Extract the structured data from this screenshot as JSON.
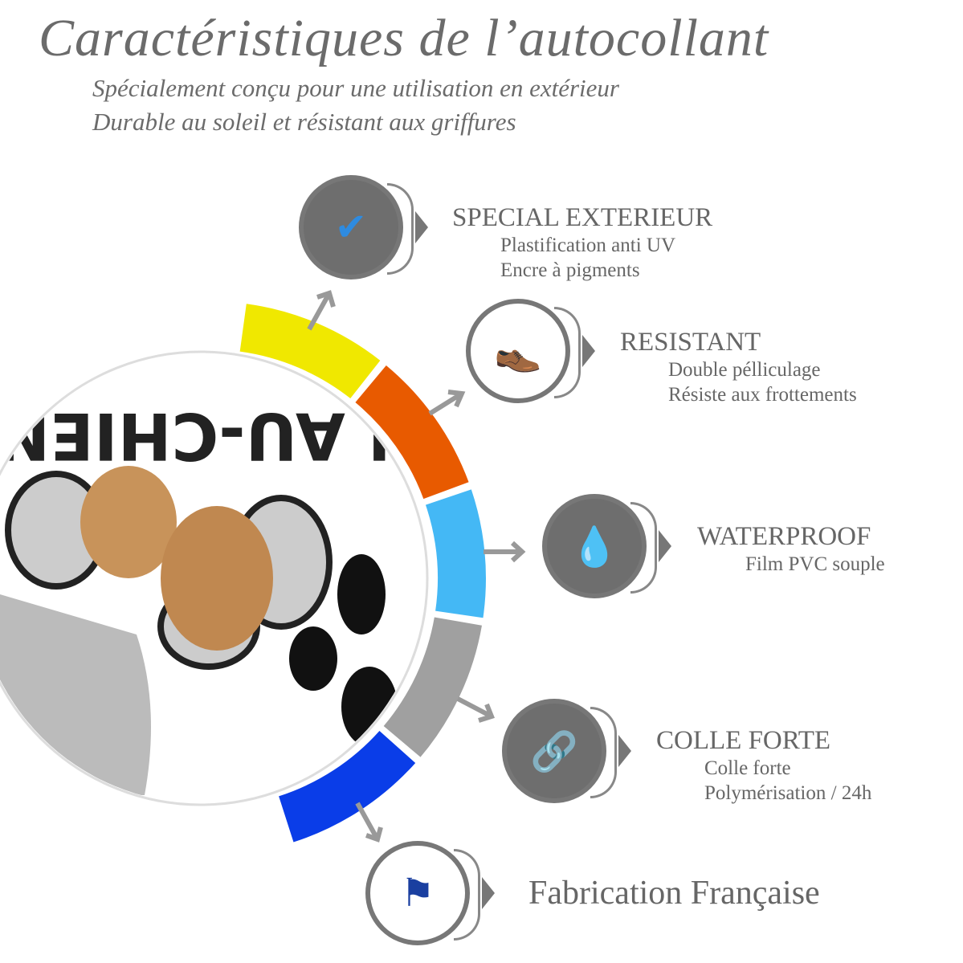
{
  "header": {
    "title": "Caractéristiques de l’autocollant",
    "subtitle_lines": [
      "Spécialement conçu pour une utilisation en extérieur",
      "Durable au soleil et résistant aux griffures"
    ]
  },
  "sticker": {
    "text": "N AU-CHIEN"
  },
  "ring_colors": [
    "#f0e800",
    "#e85a00",
    "#44b8f5",
    "#a0a0a0",
    "#0a3de8"
  ],
  "features": [
    {
      "title": "SPECIAL EXTERIEUR",
      "lines": [
        "Plastification anti UV",
        "Encre à pigments"
      ],
      "icon": "uv-protection-layers-icon"
    },
    {
      "title": "RESISTANT",
      "lines": [
        "Double pélliculage",
        "Résiste aux frottements"
      ],
      "icon": "shoe-icon"
    },
    {
      "title": "WATERPROOF",
      "lines": [
        "Film PVC souple"
      ],
      "icon": "waterproof-layers-icon"
    },
    {
      "title": "COLLE FORTE",
      "lines": [
        "Colle forte",
        "Polymérisation / 24h"
      ],
      "icon": "chain-link-icon"
    },
    {
      "title": "Fabrication Française",
      "lines": [],
      "icon": "french-flag-eiffel-icon"
    }
  ]
}
